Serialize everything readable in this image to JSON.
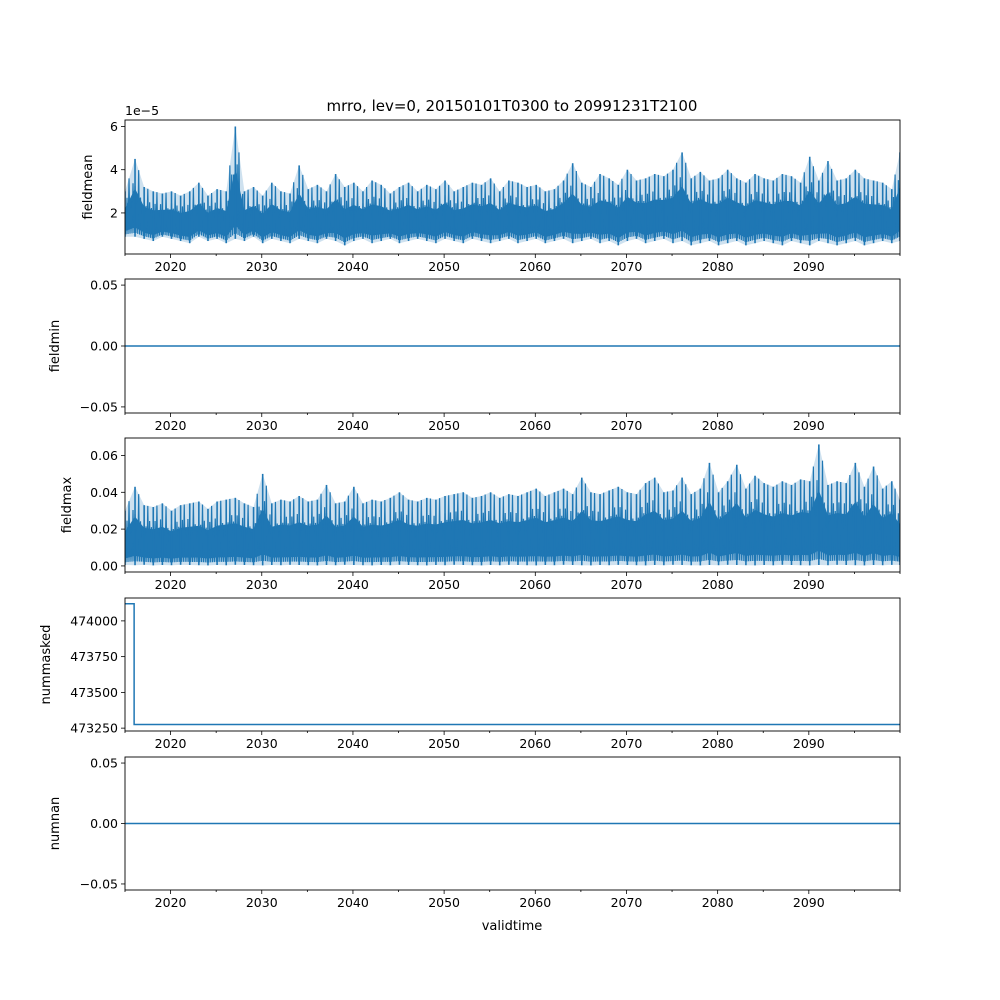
{
  "figure": {
    "title": "mrro, lev=0, 20150101T0300 to 20991231T2100",
    "xlabel": "validtime"
  },
  "colors": {
    "series": "#1f77b4",
    "axes": "#000000"
  },
  "chart_data": [
    {
      "type": "line",
      "ylabel": "fieldmean",
      "offset_text": "1e−5",
      "xlim": [
        2015.0,
        2100.0
      ],
      "ylim": [
        0.1,
        6.3
      ],
      "x_ticks": [
        2020,
        2030,
        2040,
        2050,
        2060,
        2070,
        2080,
        2090
      ],
      "x_tick_labels": [
        "2020",
        "2030",
        "2040",
        "2050",
        "2060",
        "2070",
        "2080",
        "2090"
      ],
      "y_ticks": [
        2,
        4,
        6
      ],
      "y_tick_labels": [
        "2",
        "4",
        "6"
      ],
      "series": [
        {
          "x": [
            2015.0,
            2016.1,
            2017.1,
            2018.1,
            2019.1,
            2020.1,
            2021.1,
            2022.1,
            2023.1,
            2024.1,
            2025.1,
            2026.1,
            2027.1,
            2028.1,
            2029.1,
            2030.1,
            2031.1,
            2032.1,
            2033.1,
            2034.1,
            2035.1,
            2036.1,
            2037.1,
            2038.1,
            2039.1,
            2040.1,
            2041.1,
            2042.1,
            2043.1,
            2044.1,
            2045.1,
            2046.1,
            2047.1,
            2048.1,
            2049.1,
            2050.1,
            2051.1,
            2052.1,
            2053.1,
            2054.1,
            2055.1,
            2056.1,
            2057.1,
            2058.1,
            2059.1,
            2060.1,
            2061.1,
            2062.1,
            2063.1,
            2064.1,
            2065.1,
            2066.1,
            2067.1,
            2068.1,
            2069.1,
            2070.1,
            2071.1,
            2072.1,
            2073.1,
            2074.1,
            2075.1,
            2076.1,
            2077.1,
            2078.1,
            2079.1,
            2080.1,
            2081.1,
            2082.1,
            2083.1,
            2084.1,
            2085.1,
            2086.1,
            2087.1,
            2088.1,
            2089.1,
            2090.1,
            2091.1,
            2092.1,
            2093.1,
            2094.1,
            2095.1,
            2096.1,
            2097.1,
            2098.1,
            2099.1,
            2100.0
          ],
          "peak": [
            3.0,
            4.5,
            3.2,
            3.0,
            2.9,
            3.0,
            2.8,
            3.0,
            3.4,
            2.8,
            3.1,
            3.0,
            6.0,
            3.0,
            3.2,
            2.8,
            3.4,
            3.0,
            2.9,
            4.2,
            3.1,
            3.3,
            3.0,
            3.8,
            3.2,
            3.4,
            3.0,
            3.5,
            3.3,
            2.9,
            3.2,
            3.4,
            3.0,
            3.3,
            3.1,
            3.5,
            3.0,
            3.2,
            3.4,
            3.3,
            3.6,
            3.0,
            3.5,
            3.4,
            3.2,
            3.3,
            3.0,
            3.1,
            3.5,
            4.3,
            3.4,
            3.2,
            3.8,
            3.6,
            3.3,
            4.0,
            3.5,
            3.6,
            3.8,
            3.7,
            4.0,
            4.8,
            3.6,
            3.9,
            3.5,
            3.6,
            4.0,
            3.6,
            3.4,
            3.8,
            3.6,
            3.5,
            3.8,
            3.7,
            3.4,
            4.6,
            3.5,
            4.4,
            3.5,
            3.6,
            4.0,
            3.6,
            3.5,
            3.4,
            3.1,
            4.8
          ],
          "trough": [
            0.9,
            0.9,
            0.8,
            0.7,
            0.9,
            0.8,
            0.7,
            0.6,
            0.9,
            0.7,
            0.8,
            0.6,
            0.8,
            0.7,
            0.9,
            0.6,
            0.8,
            0.7,
            0.6,
            0.8,
            0.7,
            0.6,
            0.8,
            0.7,
            0.5,
            0.7,
            0.8,
            0.6,
            0.7,
            0.8,
            0.6,
            0.7,
            0.8,
            0.7,
            0.6,
            0.8,
            0.7,
            0.6,
            0.8,
            0.7,
            0.6,
            0.7,
            0.8,
            0.6,
            0.7,
            0.8,
            0.6,
            0.7,
            0.8,
            0.6,
            0.7,
            0.8,
            0.6,
            0.7,
            0.5,
            0.7,
            0.8,
            0.6,
            0.7,
            0.8,
            0.6,
            0.7,
            0.5,
            0.6,
            0.7,
            0.5,
            0.6,
            0.7,
            0.5,
            0.6,
            0.7,
            0.6,
            0.5,
            0.7,
            0.6,
            0.5,
            0.7,
            0.6,
            0.5,
            0.6,
            0.7,
            0.5,
            0.6,
            0.7,
            0.6,
            0.7
          ]
        }
      ]
    },
    {
      "type": "line",
      "ylabel": "fieldmin",
      "xlim": [
        2015.0,
        2100.0
      ],
      "ylim": [
        -0.055,
        0.055
      ],
      "x_ticks": [
        2020,
        2030,
        2040,
        2050,
        2060,
        2070,
        2080,
        2090
      ],
      "x_tick_labels": [
        "2020",
        "2030",
        "2040",
        "2050",
        "2060",
        "2070",
        "2080",
        "2090"
      ],
      "y_ticks": [
        -0.05,
        0.0,
        0.05
      ],
      "y_tick_labels": [
        "−0.05",
        "0.00",
        "0.05"
      ],
      "series": [
        {
          "x": [
            2015.0,
            2100.0
          ],
          "y": [
            0.0,
            0.0
          ]
        }
      ]
    },
    {
      "type": "line",
      "ylabel": "fieldmax",
      "xlim": [
        2015.0,
        2100.0
      ],
      "ylim": [
        -0.0033,
        0.0695
      ],
      "x_ticks": [
        2020,
        2030,
        2040,
        2050,
        2060,
        2070,
        2080,
        2090
      ],
      "x_tick_labels": [
        "2020",
        "2030",
        "2040",
        "2050",
        "2060",
        "2070",
        "2080",
        "2090"
      ],
      "y_ticks": [
        0.0,
        0.02,
        0.04,
        0.06
      ],
      "y_tick_labels": [
        "0.00",
        "0.02",
        "0.04",
        "0.06"
      ],
      "series": [
        {
          "x": [
            2015.0,
            2016.1,
            2017.1,
            2018.1,
            2019.1,
            2020.1,
            2021.1,
            2022.1,
            2023.1,
            2024.1,
            2025.1,
            2026.1,
            2027.1,
            2028.1,
            2029.1,
            2030.1,
            2031.1,
            2032.1,
            2033.1,
            2034.1,
            2035.1,
            2036.1,
            2037.1,
            2038.1,
            2039.1,
            2040.1,
            2041.1,
            2042.1,
            2043.1,
            2044.1,
            2045.1,
            2046.1,
            2047.1,
            2048.1,
            2049.1,
            2050.1,
            2051.1,
            2052.1,
            2053.1,
            2054.1,
            2055.1,
            2056.1,
            2057.1,
            2058.1,
            2059.1,
            2060.1,
            2061.1,
            2062.1,
            2063.1,
            2064.1,
            2065.1,
            2066.1,
            2067.1,
            2068.1,
            2069.1,
            2070.1,
            2071.1,
            2072.1,
            2073.1,
            2074.1,
            2075.1,
            2076.1,
            2077.1,
            2078.1,
            2079.1,
            2080.1,
            2081.1,
            2082.1,
            2083.1,
            2084.1,
            2085.1,
            2086.1,
            2087.1,
            2088.1,
            2089.1,
            2090.1,
            2091.1,
            2092.1,
            2093.1,
            2094.1,
            2095.1,
            2096.1,
            2097.1,
            2098.1,
            2099.1,
            2100.0
          ],
          "peak": [
            0.03,
            0.043,
            0.033,
            0.032,
            0.034,
            0.03,
            0.033,
            0.034,
            0.035,
            0.031,
            0.035,
            0.036,
            0.037,
            0.034,
            0.032,
            0.05,
            0.034,
            0.036,
            0.035,
            0.038,
            0.035,
            0.036,
            0.044,
            0.034,
            0.035,
            0.043,
            0.034,
            0.036,
            0.035,
            0.037,
            0.04,
            0.036,
            0.035,
            0.037,
            0.036,
            0.038,
            0.039,
            0.04,
            0.037,
            0.038,
            0.04,
            0.037,
            0.039,
            0.038,
            0.04,
            0.042,
            0.038,
            0.04,
            0.042,
            0.039,
            0.048,
            0.04,
            0.039,
            0.041,
            0.043,
            0.04,
            0.039,
            0.045,
            0.048,
            0.04,
            0.041,
            0.048,
            0.039,
            0.042,
            0.056,
            0.04,
            0.046,
            0.055,
            0.042,
            0.049,
            0.045,
            0.043,
            0.046,
            0.044,
            0.047,
            0.046,
            0.066,
            0.044,
            0.046,
            0.045,
            0.056,
            0.043,
            0.054,
            0.042,
            0.046,
            0.036
          ],
          "trough": [
            0.0005,
            0.0004,
            0.0006,
            0.0003,
            0.0005,
            0.0004,
            0.0006,
            0.0005,
            0.0004,
            0.0003,
            0.0005,
            0.0004,
            0.0006,
            0.0005,
            0.0004,
            0.0003,
            0.0005,
            0.0004,
            0.0006,
            0.0005,
            0.0004,
            0.0003,
            0.0005,
            0.0004,
            0.0006,
            0.0005,
            0.0004,
            0.0003,
            0.0005,
            0.0004,
            0.0006,
            0.0005,
            0.0004,
            0.0003,
            0.0005,
            0.0004,
            0.0006,
            0.0005,
            0.0004,
            0.0003,
            0.0005,
            0.0004,
            0.0006,
            0.0005,
            0.0004,
            0.0003,
            0.0005,
            0.0004,
            0.0006,
            0.0005,
            0.0004,
            0.0003,
            0.0005,
            0.0004,
            0.0006,
            0.0005,
            0.0004,
            0.0003,
            0.0005,
            0.0004,
            0.0006,
            0.0005,
            0.0004,
            0.0003,
            0.0005,
            0.0004,
            0.0006,
            0.0005,
            0.0004,
            0.0003,
            0.0005,
            0.0004,
            0.0006,
            0.0005,
            0.0004,
            0.0003,
            0.0005,
            0.0004,
            0.0006,
            0.0005,
            0.0004,
            0.0003,
            0.0005,
            0.0004,
            0.0006,
            0.0005
          ]
        }
      ]
    },
    {
      "type": "line",
      "ylabel": "nummasked",
      "xlim": [
        2015.0,
        2100.0
      ],
      "ylim": [
        473230,
        474160
      ],
      "x_ticks": [
        2020,
        2030,
        2040,
        2050,
        2060,
        2070,
        2080,
        2090
      ],
      "x_tick_labels": [
        "2020",
        "2030",
        "2040",
        "2050",
        "2060",
        "2070",
        "2080",
        "2090"
      ],
      "y_ticks": [
        473250,
        473500,
        473750,
        474000
      ],
      "y_tick_labels": [
        "473250",
        "473500",
        "473750",
        "474000"
      ],
      "series": [
        {
          "x": [
            2015.0,
            2016.0,
            2016.0,
            2100.0
          ],
          "y": [
            474120,
            474120,
            473275,
            473275
          ]
        }
      ]
    },
    {
      "type": "line",
      "ylabel": "numnan",
      "xlim": [
        2015.0,
        2100.0
      ],
      "ylim": [
        -0.055,
        0.055
      ],
      "x_ticks": [
        2020,
        2030,
        2040,
        2050,
        2060,
        2070,
        2080,
        2090
      ],
      "x_tick_labels": [
        "2020",
        "2030",
        "2040",
        "2050",
        "2060",
        "2070",
        "2080",
        "2090"
      ],
      "y_ticks": [
        -0.05,
        0.0,
        0.05
      ],
      "y_tick_labels": [
        "−0.05",
        "0.00",
        "0.05"
      ],
      "series": [
        {
          "x": [
            2015.0,
            2100.0
          ],
          "y": [
            0.0,
            0.0
          ]
        }
      ]
    }
  ]
}
